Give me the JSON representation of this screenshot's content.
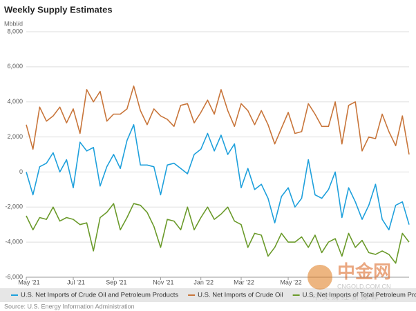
{
  "chart_data": {
    "type": "line",
    "title": "Weekly Supply Estimates",
    "y_label": "Mbbl/d",
    "source": "Source: U.S. Energy Information Administration",
    "watermark": {
      "brand": "中金网",
      "url": "CNGOLD.COM.CN",
      "tagline": "中 文 财 经 新 媒 体"
    },
    "categories": [
      "May '21",
      null,
      null,
      null,
      null,
      null,
      null,
      "Jul '21",
      null,
      null,
      null,
      null,
      null,
      "Sep '21",
      null,
      null,
      null,
      null,
      null,
      null,
      "Nov '21",
      null,
      null,
      null,
      null,
      null,
      "Jan '22",
      null,
      null,
      null,
      null,
      null,
      "Mar '22",
      null,
      null,
      null,
      null,
      null,
      null,
      "May '22",
      null,
      null,
      null,
      null,
      null,
      null,
      null,
      null,
      null,
      null,
      null,
      null,
      null,
      null,
      null,
      null,
      null,
      null
    ],
    "ylim": [
      -6000,
      8000
    ],
    "yticks": [
      {
        "value": -6000,
        "label": "-6,000"
      },
      {
        "value": -4000,
        "label": "-4,000"
      },
      {
        "value": -2000,
        "label": "-2,000"
      },
      0,
      {
        "value": 2000,
        "label": "2,000"
      },
      {
        "value": 4000,
        "label": "4,000"
      },
      {
        "value": 6000,
        "label": "6,000"
      },
      {
        "value": 8000,
        "label": "8,000"
      }
    ],
    "grid": true,
    "legend": "bottom",
    "series": [
      {
        "name": "U.S. Net Imports of Crude Oil and Petroleum Products",
        "color": "#1ea0dc",
        "values": [
          0,
          -1300,
          300,
          500,
          1100,
          0,
          700,
          -900,
          1700,
          1200,
          1400,
          -800,
          300,
          1000,
          200,
          1800,
          2700,
          400,
          400,
          300,
          -1300,
          400,
          500,
          200,
          -100,
          1000,
          1300,
          2200,
          1200,
          2100,
          1000,
          1600,
          -900,
          200,
          -1000,
          -700,
          -1500,
          -2900,
          -1400,
          -900,
          -2000,
          -1500,
          700,
          -1300,
          -1500,
          -1000,
          0,
          -2600,
          -900,
          -1700,
          -2700,
          -1900,
          -700,
          -2700,
          -3300,
          -1900,
          -1700,
          -3000
        ]
      },
      {
        "name": "U.S. Net Imports of Crude Oil",
        "color": "#c8753a",
        "values": [
          2700,
          1300,
          3700,
          2900,
          3200,
          3700,
          2800,
          3600,
          2200,
          4700,
          4000,
          4600,
          2900,
          3300,
          3300,
          3600,
          4900,
          3500,
          2700,
          3600,
          3200,
          3000,
          2600,
          3800,
          3900,
          2800,
          3400,
          4100,
          3300,
          4700,
          3500,
          2600,
          3900,
          3500,
          2700,
          3500,
          2700,
          1600,
          2500,
          3400,
          2200,
          2300,
          3900,
          3300,
          2600,
          2600,
          4000,
          1600,
          3800,
          4000,
          1200,
          2000,
          1900,
          3300,
          2300,
          1500,
          3200,
          1000
        ]
      },
      {
        "name": "U.S. Net Imports of Total Petroleum Products",
        "color": "#6a9a2a",
        "values": [
          -2500,
          -3300,
          -2600,
          -2700,
          -2000,
          -2800,
          -2600,
          -2700,
          -3000,
          -2900,
          -4500,
          -2600,
          -2300,
          -1800,
          -3300,
          -2600,
          -1800,
          -1900,
          -2300,
          -3100,
          -4300,
          -2700,
          -2800,
          -3300,
          -2000,
          -3300,
          -2600,
          -2000,
          -2700,
          -2400,
          -2000,
          -2800,
          -3000,
          -4300,
          -3500,
          -3600,
          -4800,
          -4300,
          -3500,
          -4000,
          -4000,
          -3700,
          -4300,
          -3600,
          -4600,
          -4000,
          -3800,
          -4800,
          -3500,
          -4300,
          -3900,
          -4600,
          -4700,
          -4500,
          -4700,
          -5200,
          -3500,
          -4000
        ]
      }
    ]
  }
}
